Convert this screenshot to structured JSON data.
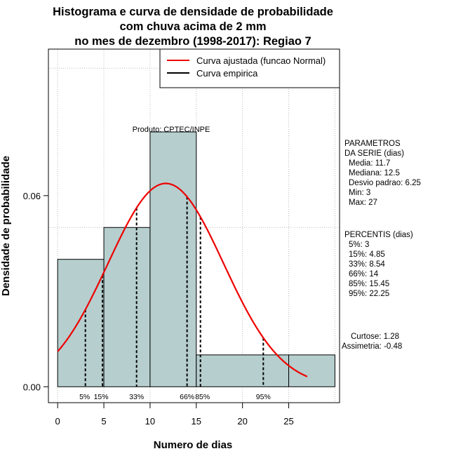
{
  "chart_data": {
    "type": "bar",
    "title_lines": [
      "Histograma e curva de densidade de probabilidade",
      "com chuva acima de 2 mm",
      "no mes de dezembro (1998-2017): Regiao 7"
    ],
    "xlabel": "Numero de dias",
    "ylabel": "Densidade de probabilidade",
    "xlim": [
      -1,
      30.5
    ],
    "ylim": [
      -0.005,
      0.106
    ],
    "x_ticks": [
      0,
      5,
      10,
      15,
      20,
      25
    ],
    "y_ticks": [
      0.0,
      0.06
    ],
    "y_tick_labels": [
      "0.00",
      "0.06"
    ],
    "gridlines_y": [
      0.05,
      0.1
    ],
    "bins": [
      {
        "from": 0,
        "to": 5,
        "density": 0.04
      },
      {
        "from": 5,
        "to": 10,
        "density": 0.05
      },
      {
        "from": 10,
        "to": 15,
        "density": 0.08
      },
      {
        "from": 15,
        "to": 25,
        "density": 0.01
      },
      {
        "from": 25,
        "to": 30,
        "density": 0.01
      }
    ],
    "normal_fit": {
      "mean": 11.7,
      "sd": 6.25,
      "x_from": 0,
      "x_to": 27
    },
    "percentile_lines": [
      {
        "label": "5%",
        "x": 3.0
      },
      {
        "label": "15%",
        "x": 4.85
      },
      {
        "label": "33%",
        "x": 8.54
      },
      {
        "label": "66%",
        "x": 14.0
      },
      {
        "label": "85%",
        "x": 15.45
      },
      {
        "label": "95%",
        "x": 22.25
      }
    ],
    "legend": [
      {
        "label": "Curva ajustada (funcao Normal)",
        "color": "#ee0000"
      },
      {
        "label": "Curva empirica",
        "color": "#000000"
      }
    ],
    "legend_position": "top-right",
    "annotation": "Produto: CPTEC/INPE",
    "colors": {
      "bar_fill": "#b6cece",
      "curve": "#ee0000",
      "grid": "#bbbbbb"
    }
  },
  "stats": {
    "parametros_title": [
      "PARAMETROS",
      "DA SERIE (dias)"
    ],
    "parametros": [
      "Media: 11.7",
      "Mediana: 12.5",
      "Desvio padrao: 6.25",
      "Min: 3",
      "Max: 27"
    ],
    "percentis_title": "PERCENTIS (dias)",
    "percentis": [
      "5%: 3",
      "15%: 4.85",
      "33%: 8.54",
      "66%: 14",
      "85%: 15.45",
      "95%: 22.25"
    ],
    "curtose": "Curtose: 1.28",
    "assimetria": "Assimetria: -0.48"
  }
}
